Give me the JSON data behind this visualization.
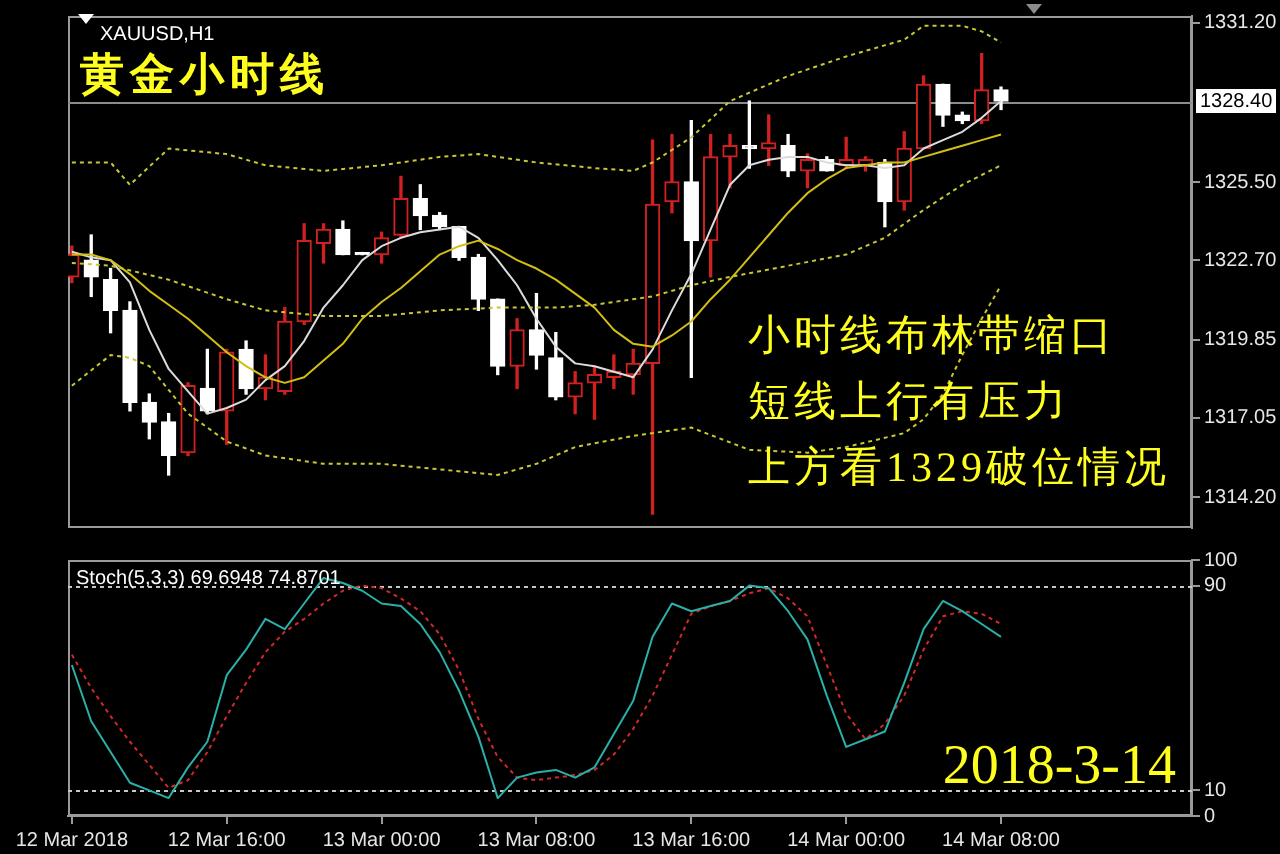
{
  "chart_data": [
    {
      "type": "candlestick",
      "title": "XAUUSD,H1",
      "subtitle": "黄金小时线",
      "annotations": [
        "小时线布林带缩口",
        "短线上行有压力",
        "上方看1329破位情况"
      ],
      "x": [
        "2018-03-12T08:00",
        "2018-03-12T09:00",
        "2018-03-12T10:00",
        "2018-03-12T11:00",
        "2018-03-12T12:00",
        "2018-03-12T13:00",
        "2018-03-12T14:00",
        "2018-03-12T15:00",
        "2018-03-12T16:00",
        "2018-03-12T17:00",
        "2018-03-12T18:00",
        "2018-03-12T19:00",
        "2018-03-12T20:00",
        "2018-03-12T21:00",
        "2018-03-12T22:00",
        "2018-03-12T23:00",
        "2018-03-13T00:00",
        "2018-03-13T01:00",
        "2018-03-13T02:00",
        "2018-03-13T03:00",
        "2018-03-13T04:00",
        "2018-03-13T05:00",
        "2018-03-13T06:00",
        "2018-03-13T07:00",
        "2018-03-13T08:00",
        "2018-03-13T09:00",
        "2018-03-13T10:00",
        "2018-03-13T11:00",
        "2018-03-13T12:00",
        "2018-03-13T13:00",
        "2018-03-13T14:00",
        "2018-03-13T15:00",
        "2018-03-13T16:00",
        "2018-03-13T17:00",
        "2018-03-13T18:00",
        "2018-03-13T19:00",
        "2018-03-13T20:00",
        "2018-03-13T21:00",
        "2018-03-13T22:00",
        "2018-03-13T23:00",
        "2018-03-14T00:00",
        "2018-03-14T01:00",
        "2018-03-14T02:00",
        "2018-03-14T03:00",
        "2018-03-14T04:00",
        "2018-03-14T05:00",
        "2018-03-14T06:00",
        "2018-03-14T07:00",
        "2018-03-14T08:00"
      ],
      "ohlc": [
        [
          1322.1,
          1323.2,
          1321.9,
          1322.9
        ],
        [
          1322.7,
          1323.6,
          1321.4,
          1322.1
        ],
        [
          1322.0,
          1322.4,
          1320.1,
          1320.9
        ],
        [
          1320.9,
          1321.2,
          1317.3,
          1317.6
        ],
        [
          1317.6,
          1317.9,
          1316.3,
          1316.9
        ],
        [
          1316.9,
          1317.2,
          1315.0,
          1315.7
        ],
        [
          1315.8,
          1318.3,
          1315.7,
          1318.2
        ],
        [
          1318.1,
          1319.5,
          1317.2,
          1317.3
        ],
        [
          1317.3,
          1319.5,
          1316.1,
          1319.4
        ],
        [
          1319.5,
          1319.8,
          1317.9,
          1318.1
        ],
        [
          1318.1,
          1319.3,
          1317.7,
          1318.5
        ],
        [
          1318.0,
          1321.0,
          1317.9,
          1320.5
        ],
        [
          1320.5,
          1324.0,
          1320.4,
          1323.4
        ],
        [
          1323.3,
          1324.0,
          1322.6,
          1323.8
        ],
        [
          1323.8,
          1324.1,
          1322.9,
          1322.9
        ],
        [
          1322.9,
          1322.9,
          1322.9,
          1322.9
        ],
        [
          1322.9,
          1323.7,
          1322.6,
          1323.5
        ],
        [
          1323.6,
          1325.7,
          1323.5,
          1324.9
        ],
        [
          1324.9,
          1325.4,
          1323.8,
          1324.3
        ],
        [
          1324.3,
          1324.4,
          1323.8,
          1323.9
        ],
        [
          1323.9,
          1323.9,
          1322.7,
          1322.8
        ],
        [
          1322.8,
          1322.9,
          1320.9,
          1321.3
        ],
        [
          1321.3,
          1321.3,
          1318.6,
          1318.9
        ],
        [
          1318.9,
          1320.6,
          1318.1,
          1320.2
        ],
        [
          1320.2,
          1321.5,
          1318.8,
          1319.3
        ],
        [
          1319.2,
          1320.1,
          1317.7,
          1317.8
        ],
        [
          1317.8,
          1318.7,
          1317.2,
          1318.3
        ],
        [
          1318.3,
          1318.9,
          1317.0,
          1318.6
        ],
        [
          1318.5,
          1319.3,
          1318.1,
          1318.7
        ],
        [
          1318.6,
          1319.5,
          1317.9,
          1319.0
        ],
        [
          1319.0,
          1327.0,
          1313.6,
          1324.7
        ],
        [
          1324.8,
          1327.2,
          1324.4,
          1325.5
        ],
        [
          1325.5,
          1327.7,
          1318.5,
          1323.4
        ],
        [
          1323.4,
          1327.2,
          1322.1,
          1326.4
        ],
        [
          1326.4,
          1327.2,
          1325.3,
          1326.8
        ],
        [
          1326.8,
          1328.4,
          1326.0,
          1326.7
        ],
        [
          1326.7,
          1327.9,
          1326.1,
          1326.9
        ],
        [
          1326.8,
          1327.2,
          1325.7,
          1325.9
        ],
        [
          1325.9,
          1326.5,
          1325.3,
          1326.3
        ],
        [
          1326.3,
          1326.4,
          1325.9,
          1325.9
        ],
        [
          1326.1,
          1327.1,
          1326.0,
          1326.3
        ],
        [
          1326.1,
          1326.4,
          1325.9,
          1326.3
        ],
        [
          1326.2,
          1326.3,
          1323.9,
          1324.8
        ],
        [
          1324.8,
          1327.3,
          1324.5,
          1326.7
        ],
        [
          1326.7,
          1329.3,
          1326.7,
          1329.0
        ],
        [
          1329.0,
          1329.0,
          1327.5,
          1327.9
        ],
        [
          1327.9,
          1328.0,
          1327.6,
          1327.7
        ],
        [
          1327.7,
          1330.1,
          1327.6,
          1328.8
        ],
        [
          1328.8,
          1328.9,
          1328.1,
          1328.4
        ]
      ],
      "colors": [
        "#d02020",
        "#ffffff",
        "#ffffff",
        "#ffffff",
        "#ffffff",
        "#ffffff",
        "#d02020",
        "#ffffff",
        "#d02020",
        "#ffffff",
        "#d02020",
        "#d02020",
        "#d02020",
        "#d02020",
        "#ffffff",
        "#ffffff",
        "#d02020",
        "#d02020",
        "#ffffff",
        "#ffffff",
        "#ffffff",
        "#ffffff",
        "#ffffff",
        "#d02020",
        "#ffffff",
        "#ffffff",
        "#d02020",
        "#d02020",
        "#d02020",
        "#d02020",
        "#d02020",
        "#d02020",
        "#ffffff",
        "#d02020",
        "#d02020",
        "#ffffff",
        "#d02020",
        "#ffffff",
        "#d02020",
        "#ffffff",
        "#d02020",
        "#d02020",
        "#ffffff",
        "#d02020",
        "#d02020",
        "#ffffff",
        "#ffffff",
        "#d02020",
        "#ffffff"
      ],
      "series": [
        {
          "type": "line",
          "color": "#c8c832",
          "line_style": "dotted",
          "x": [
            "2018-03-12T08:00",
            "2018-03-12T10:00",
            "2018-03-12T11:00",
            "2018-03-12T13:00",
            "2018-03-12T16:00",
            "2018-03-12T18:00",
            "2018-03-12T21:00",
            "2018-03-13T00:00",
            "2018-03-13T03:00",
            "2018-03-13T05:00",
            "2018-03-13T08:00",
            "2018-03-13T11:00",
            "2018-03-13T13:00",
            "2018-03-13T14:00",
            "2018-03-13T16:00",
            "2018-03-13T18:00",
            "2018-03-13T21:00",
            "2018-03-14T00:00",
            "2018-03-14T03:00",
            "2018-03-14T04:00",
            "2018-03-14T06:00",
            "2018-03-14T07:00",
            "2018-03-14T08:00"
          ],
          "values": [
            1326.2,
            1326.2,
            1325.4,
            1326.7,
            1326.5,
            1326.1,
            1325.9,
            1326.1,
            1326.4,
            1326.5,
            1326.2,
            1326.0,
            1325.9,
            1326.2,
            1327.1,
            1328.4,
            1329.3,
            1330.0,
            1330.6,
            1331.1,
            1331.1,
            1330.9,
            1330.5
          ]
        },
        {
          "type": "line",
          "color": "#c8c832",
          "line_style": "dotted",
          "x": [
            "2018-03-12T08:00",
            "2018-03-12T10:00",
            "2018-03-12T13:00",
            "2018-03-12T16:00",
            "2018-03-12T18:00",
            "2018-03-12T21:00",
            "2018-03-13T00:00",
            "2018-03-13T03:00",
            "2018-03-13T06:00",
            "2018-03-13T09:00",
            "2018-03-13T11:00",
            "2018-03-13T14:00",
            "2018-03-13T16:00",
            "2018-03-13T18:00",
            "2018-03-13T21:00",
            "2018-03-14T00:00",
            "2018-03-14T02:00",
            "2018-03-14T04:00",
            "2018-03-14T06:00",
            "2018-03-14T08:00"
          ],
          "values": [
            1322.6,
            1322.5,
            1322.0,
            1321.3,
            1320.9,
            1320.7,
            1320.7,
            1320.9,
            1321.0,
            1321.0,
            1321.1,
            1321.4,
            1321.8,
            1322.1,
            1322.5,
            1322.9,
            1323.5,
            1324.5,
            1325.4,
            1326.1
          ]
        },
        {
          "type": "line",
          "color": "#c8c832",
          "line_style": "dotted",
          "x": [
            "2018-03-12T08:00",
            "2018-03-12T10:00",
            "2018-03-12T11:00",
            "2018-03-12T12:00",
            "2018-03-12T14:00",
            "2018-03-12T16:00",
            "2018-03-12T18:00",
            "2018-03-12T21:00",
            "2018-03-13T00:00",
            "2018-03-13T03:00",
            "2018-03-13T06:00",
            "2018-03-13T08:00",
            "2018-03-13T10:00",
            "2018-03-13T13:00",
            "2018-03-13T16:00",
            "2018-03-13T19:00",
            "2018-03-13T22:00",
            "2018-03-14T00:00",
            "2018-03-14T03:00",
            "2018-03-14T04:00",
            "2018-03-14T05:00",
            "2018-03-14T06:00",
            "2018-03-14T07:00",
            "2018-03-14T08:00"
          ],
          "values": [
            1318.2,
            1319.3,
            1319.2,
            1318.9,
            1317.2,
            1316.2,
            1315.7,
            1315.4,
            1315.4,
            1315.2,
            1315.0,
            1315.4,
            1316.0,
            1316.4,
            1316.7,
            1315.9,
            1315.8,
            1316.0,
            1316.5,
            1317.0,
            1317.9,
            1319.3,
            1320.6,
            1321.8
          ]
        },
        {
          "type": "line",
          "color": "#d2be14",
          "line_style": "solid",
          "values": [
            1322.9,
            1322.9,
            1322.7,
            1322.2,
            1321.6,
            1321.1,
            1320.6,
            1320.0,
            1319.4,
            1318.9,
            1318.5,
            1318.3,
            1318.5,
            1319.1,
            1319.7,
            1320.6,
            1321.2,
            1321.7,
            1322.3,
            1322.9,
            1323.2,
            1323.4,
            1323.1,
            1322.7,
            1322.4,
            1322.0,
            1321.5,
            1321.0,
            1320.2,
            1319.7,
            1319.6,
            1320.0,
            1320.5,
            1321.3,
            1322.0,
            1322.8,
            1323.6,
            1324.4,
            1325.1,
            1325.6,
            1326.0,
            1326.1,
            1326.2,
            1326.2,
            1326.4,
            1326.6,
            1326.8,
            1327.0,
            1327.2
          ]
        },
        {
          "type": "line",
          "color": "#dcdcdc",
          "line_style": "solid",
          "values": [
            1323.0,
            1322.8,
            1322.7,
            1321.9,
            1320.2,
            1318.8,
            1318.0,
            1317.2,
            1317.4,
            1317.7,
            1318.4,
            1318.9,
            1319.8,
            1321.0,
            1321.8,
            1322.7,
            1323.2,
            1323.5,
            1323.7,
            1323.8,
            1323.9,
            1323.5,
            1322.7,
            1321.8,
            1320.6,
            1319.6,
            1319.0,
            1318.9,
            1318.7,
            1318.5,
            1319.5,
            1320.9,
            1322.2,
            1323.8,
            1325.4,
            1326.1,
            1326.3,
            1326.4,
            1326.4,
            1326.2,
            1326.1,
            1326.1,
            1326.0,
            1326.1,
            1326.7,
            1327.0,
            1327.3,
            1327.8,
            1328.4
          ]
        }
      ],
      "xlim": [
        "2018-03-12T07:48",
        "2018-03-14T17:52"
      ],
      "ylim": [
        1313.1,
        1331.45
      ],
      "yticks": [
        {
          "value": 1314.2,
          "label": "1314.20"
        },
        {
          "value": 1317.05,
          "label": "1317.05"
        },
        {
          "value": 1319.85,
          "label": "1319.85"
        },
        {
          "value": 1322.7,
          "label": "1322.70"
        },
        {
          "value": 1325.5,
          "label": "1325.50"
        },
        {
          "value": 1331.2,
          "label": "1331.20"
        }
      ],
      "ref_lines": [
        {
          "axis": "y",
          "value": 1328.4,
          "label": "1328.40",
          "color": "#8c8c8c"
        }
      ],
      "tick_labels": "y",
      "marker": "none"
    },
    {
      "type": "line",
      "title": "Stoch(5,3,3) 69.6948 74.8701",
      "annotations": [
        "2018-3-14"
      ],
      "x": [
        "2018-03-12T08:00",
        "2018-03-12T09:00",
        "2018-03-12T10:00",
        "2018-03-12T11:00",
        "2018-03-12T12:00",
        "2018-03-12T13:00",
        "2018-03-12T14:00",
        "2018-03-12T15:00",
        "2018-03-12T16:00",
        "2018-03-12T17:00",
        "2018-03-12T18:00",
        "2018-03-12T19:00",
        "2018-03-12T20:00",
        "2018-03-12T21:00",
        "2018-03-12T22:00",
        "2018-03-12T23:00",
        "2018-03-13T00:00",
        "2018-03-13T01:00",
        "2018-03-13T02:00",
        "2018-03-13T03:00",
        "2018-03-13T04:00",
        "2018-03-13T05:00",
        "2018-03-13T06:00",
        "2018-03-13T07:00",
        "2018-03-13T08:00",
        "2018-03-13T09:00",
        "2018-03-13T10:00",
        "2018-03-13T11:00",
        "2018-03-13T12:00",
        "2018-03-13T13:00",
        "2018-03-13T14:00",
        "2018-03-13T15:00",
        "2018-03-13T16:00",
        "2018-03-13T17:00",
        "2018-03-13T18:00",
        "2018-03-13T19:00",
        "2018-03-13T20:00",
        "2018-03-13T21:00",
        "2018-03-13T22:00",
        "2018-03-13T23:00",
        "2018-03-14T00:00",
        "2018-03-14T01:00",
        "2018-03-14T02:00",
        "2018-03-14T03:00",
        "2018-03-14T04:00",
        "2018-03-14T05:00",
        "2018-03-14T06:00",
        "2018-03-14T07:00",
        "2018-03-14T08:00"
      ],
      "series": [
        {
          "color": "#2ab0a8",
          "line_style": "solid",
          "values": [
            59,
            37,
            25,
            13,
            10,
            7,
            19,
            29,
            55,
            65,
            77,
            73,
            83,
            93,
            91,
            88,
            83,
            82,
            75,
            64,
            49,
            31,
            7,
            15,
            17,
            18,
            15,
            19,
            32,
            45,
            70,
            83,
            80,
            82,
            84,
            90,
            89,
            80,
            69,
            47,
            27,
            30,
            33,
            52,
            73,
            84,
            80,
            75,
            70
          ]
        },
        {
          "color": "#d22828",
          "line_style": "dotted",
          "values": [
            63,
            50,
            39,
            29,
            20,
            11,
            14,
            25,
            39,
            52,
            64,
            72,
            77,
            83,
            88,
            90,
            89,
            85,
            80,
            71,
            57,
            38,
            23,
            15,
            14,
            15,
            16,
            18,
            24,
            34,
            47,
            63,
            79,
            82,
            84,
            87,
            89,
            85,
            78,
            59,
            40,
            30,
            36,
            47,
            65,
            78,
            80,
            79,
            75
          ]
        }
      ],
      "xlim": [
        "2018-03-12T07:48",
        "2018-03-14T17:52"
      ],
      "xticks": [
        {
          "value": "2018-03-12T08:00",
          "label": "12 Mar 2018"
        },
        {
          "value": "2018-03-12T16:00",
          "label": "12 Mar 16:00"
        },
        {
          "value": "2018-03-13T00:00",
          "label": "13 Mar 00:00"
        },
        {
          "value": "2018-03-13T08:00",
          "label": "13 Mar 08:00"
        },
        {
          "value": "2018-03-13T16:00",
          "label": "13 Mar 16:00"
        },
        {
          "value": "2018-03-14T00:00",
          "label": "14 Mar 00:00"
        },
        {
          "value": "2018-03-14T08:00",
          "label": "14 Mar 08:00"
        }
      ],
      "ylim": [
        0,
        100
      ],
      "yticks": [
        0,
        10,
        90,
        100
      ],
      "ref_lines": [
        {
          "axis": "y",
          "value": 10,
          "color": "#c8c8c8",
          "line_style": "dotted"
        },
        {
          "axis": "y",
          "value": 90,
          "color": "#c8c8c8",
          "line_style": "dotted"
        }
      ],
      "marker": "none"
    }
  ]
}
